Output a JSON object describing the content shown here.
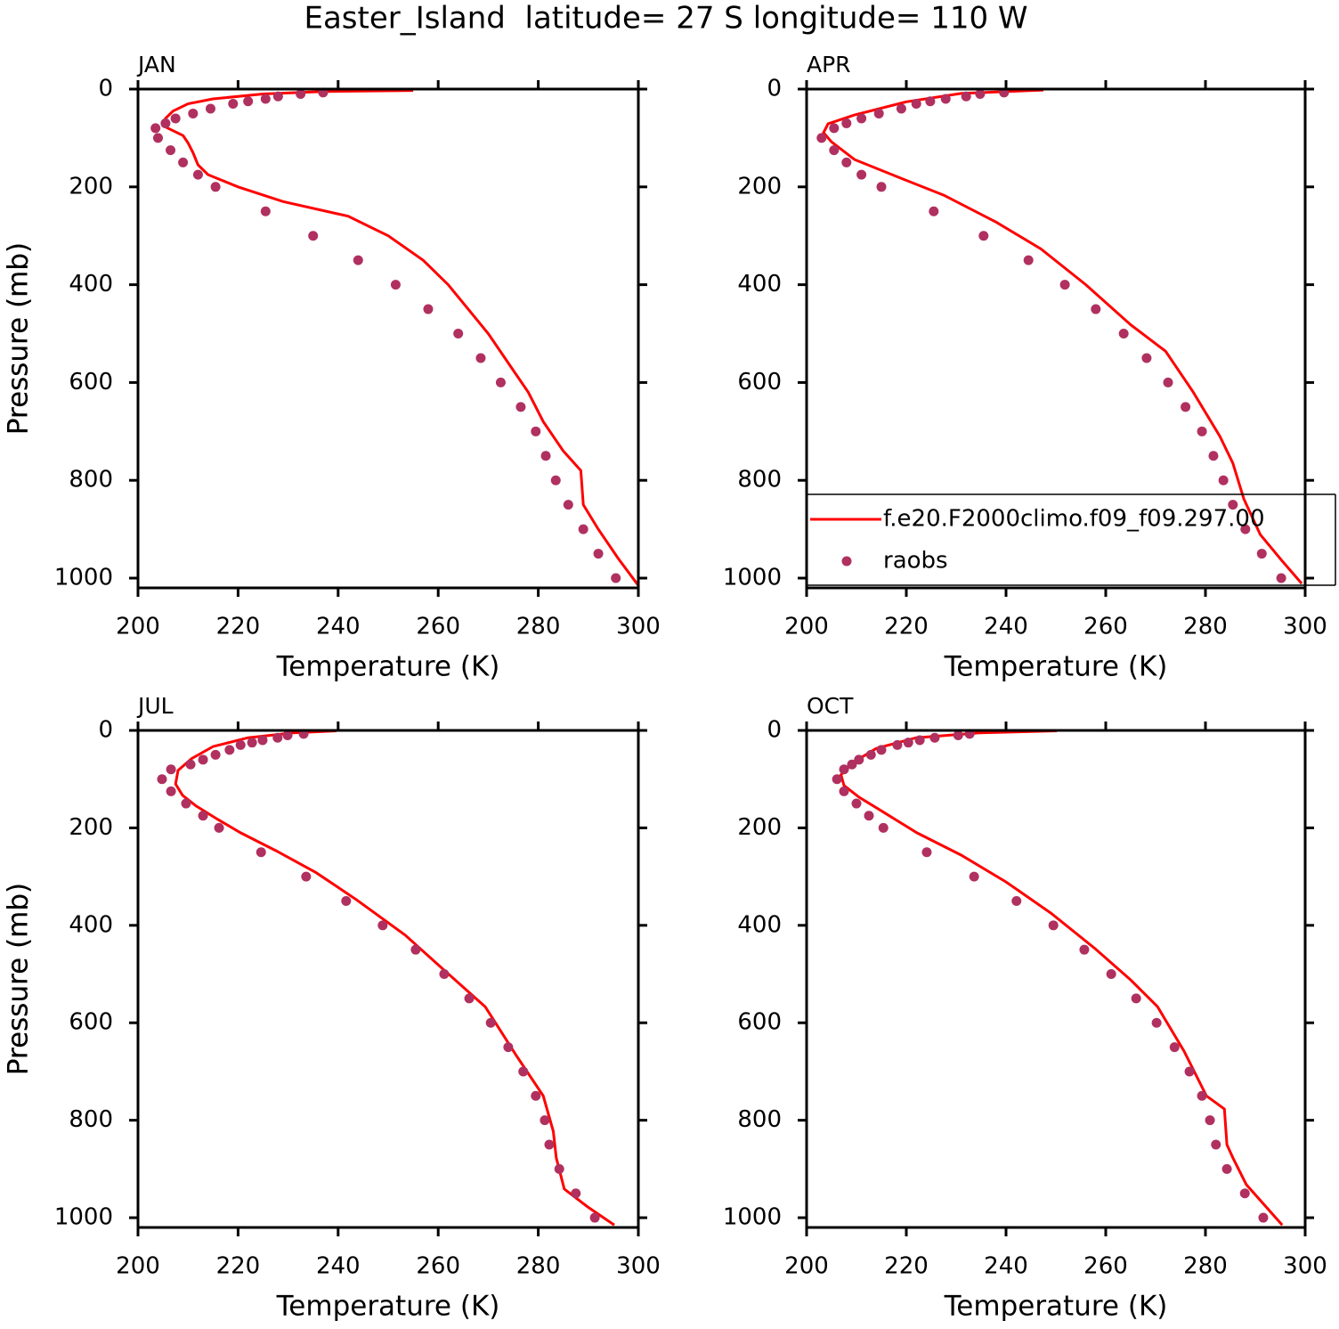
{
  "title": "Easter_Island  latitude= 27 S longitude= 110 W",
  "chart_data": [
    {
      "type": "line",
      "title": "JAN",
      "xlabel": "Temperature (K)",
      "ylabel": "Pressure (mb)",
      "xlim": [
        200,
        300
      ],
      "xticks": [
        200,
        220,
        240,
        260,
        280,
        300
      ],
      "ylim": [
        1020,
        0
      ],
      "yticks": [
        0,
        200,
        400,
        600,
        800,
        1000
      ],
      "series": [
        {
          "name": "f.e20.F2000climo.f09_f09.297.00",
          "color": "#ff0000",
          "type": "line",
          "x": [
            255,
            237,
            225,
            215,
            210,
            207,
            205.5,
            205,
            207,
            209,
            210,
            211,
            212,
            214,
            220,
            229,
            242,
            250,
            257,
            262,
            266,
            270,
            274,
            278,
            281,
            285,
            288.5,
            289,
            292,
            296,
            300
          ],
          "y": [
            3,
            5,
            10,
            20,
            30,
            45,
            60,
            75,
            85,
            95,
            110,
            130,
            155,
            175,
            200,
            230,
            260,
            300,
            350,
            400,
            450,
            500,
            560,
            620,
            680,
            740,
            780,
            850,
            900,
            960,
            1015
          ]
        },
        {
          "name": "raobs",
          "color": "#b03060",
          "type": "scatter",
          "x": [
            237,
            232.5,
            228,
            225.5,
            222,
            219,
            214.5,
            211,
            207.5,
            205.5,
            203.5,
            204,
            206.5,
            209,
            212,
            215.5,
            225.5,
            235,
            244,
            251.5,
            258,
            264,
            268.5,
            272.5,
            276.5,
            279.5,
            281.5,
            283.5,
            286,
            289,
            292,
            295.5
          ],
          "y": [
            7,
            10,
            15,
            20,
            25,
            30,
            40,
            50,
            60,
            70,
            80,
            100,
            125,
            150,
            175,
            200,
            250,
            300,
            350,
            400,
            450,
            500,
            550,
            600,
            650,
            700,
            750,
            800,
            850,
            900,
            950,
            1000
          ]
        }
      ]
    },
    {
      "type": "line",
      "title": "APR",
      "xlabel": "Temperature (K)",
      "ylabel": "Pressure (mb)",
      "xlim": [
        200,
        300
      ],
      "xticks": [
        200,
        220,
        240,
        260,
        280,
        300
      ],
      "ylim": [
        1020,
        0
      ],
      "yticks": [
        0,
        200,
        400,
        600,
        800,
        1000
      ],
      "legend": "lower right",
      "series": [
        {
          "name": "f.e20.F2000climo.f09_f09.297.00",
          "color": "#ff0000",
          "type": "line",
          "x": [
            247.5,
            231,
            220,
            209.6,
            204.3,
            203.4,
            205,
            209.6,
            218.6,
            227.5,
            238,
            247,
            256,
            265,
            272,
            277.5,
            282.9,
            285.5,
            287.7,
            291,
            295.4,
            299.3
          ],
          "y": [
            2,
            9,
            26,
            53,
            71,
            89,
            108,
            144,
            181,
            217,
            272,
            327,
            400,
            482,
            536,
            619,
            710,
            765,
            838,
            911,
            965,
            1011
          ]
        },
        {
          "name": "raobs",
          "color": "#b03060",
          "type": "scatter",
          "x": [
            239.6,
            234.8,
            232,
            227.9,
            224.8,
            222,
            219,
            214.5,
            211,
            208,
            205.5,
            203,
            205.5,
            208,
            211,
            215,
            225.5,
            235.5,
            244.5,
            251.8,
            258,
            263.6,
            268.2,
            272.5,
            276,
            279.3,
            281.6,
            283.6,
            285.5,
            288,
            291.3,
            295.2
          ],
          "y": [
            7,
            10,
            15,
            20,
            25,
            30,
            40,
            50,
            60,
            70,
            80,
            100,
            125,
            150,
            175,
            200,
            250,
            300,
            350,
            400,
            450,
            500,
            550,
            600,
            650,
            700,
            750,
            800,
            850,
            900,
            950,
            1000
          ]
        }
      ]
    },
    {
      "type": "line",
      "title": "JUL",
      "xlabel": "Temperature (K)",
      "ylabel": "Pressure (mb)",
      "xlim": [
        200,
        300
      ],
      "xticks": [
        200,
        220,
        240,
        260,
        280,
        300
      ],
      "ylim": [
        1020,
        0
      ],
      "yticks": [
        0,
        200,
        400,
        600,
        800,
        1000
      ],
      "series": [
        {
          "name": "f.e20.F2000climo.f09_f09.297.00",
          "color": "#ff0000",
          "type": "line",
          "x": [
            239.7,
            231,
            222,
            215,
            210.7,
            208,
            207.5,
            208.9,
            211.6,
            216,
            220.5,
            227.6,
            235.6,
            243.6,
            253.4,
            261.4,
            269.4,
            275.6,
            281,
            283,
            283.6,
            285.2,
            289.9,
            295.2
          ],
          "y": [
            1,
            5,
            15,
            33,
            58,
            82,
            110,
            133,
            155,
            183,
            210,
            247,
            292,
            347,
            420,
            494,
            567,
            667,
            750,
            823,
            877,
            941,
            978,
            1015
          ]
        },
        {
          "name": "raobs",
          "color": "#b03060",
          "type": "scatter",
          "x": [
            233.1,
            229.9,
            227.9,
            224.9,
            222.8,
            220.5,
            218.3,
            215.5,
            213,
            210.5,
            206.6,
            204.8,
            206.6,
            209.6,
            213,
            216.2,
            224.6,
            233.6,
            241.6,
            248.9,
            255.5,
            261.2,
            266.2,
            270.5,
            274,
            277,
            279.5,
            281.3,
            282.2,
            284.2,
            287.5,
            291.3
          ],
          "y": [
            7,
            10,
            15,
            20,
            25,
            30,
            40,
            50,
            60,
            70,
            80,
            100,
            125,
            150,
            175,
            200,
            250,
            300,
            350,
            400,
            450,
            500,
            550,
            600,
            650,
            700,
            750,
            800,
            850,
            900,
            950,
            1000
          ]
        }
      ]
    },
    {
      "type": "line",
      "title": "OCT",
      "xlabel": "Temperature (K)",
      "ylabel": "Pressure (mb)",
      "xlim": [
        200,
        300
      ],
      "xticks": [
        200,
        220,
        240,
        260,
        280,
        300
      ],
      "ylim": [
        1020,
        0
      ],
      "yticks": [
        0,
        200,
        400,
        600,
        800,
        1000
      ],
      "series": [
        {
          "name": "f.e20.F2000climo.f09_f09.297.00",
          "color": "#ff0000",
          "type": "line",
          "x": [
            250.2,
            234.6,
            222,
            214,
            209.6,
            206.9,
            207.5,
            210.5,
            215,
            222.1,
            231,
            240,
            249,
            257.9,
            265,
            270.4,
            275.7,
            280.2,
            283.8,
            284.3,
            285.5,
            288.2,
            295.4
          ],
          "y": [
            1,
            5,
            15,
            37,
            64,
            91,
            113,
            137,
            165,
            210,
            256,
            311,
            375,
            448,
            512,
            567,
            658,
            750,
            777,
            850,
            877,
            932,
            1015
          ]
        },
        {
          "name": "raobs",
          "color": "#b03060",
          "type": "scatter",
          "x": [
            232.7,
            230.4,
            225.7,
            222.7,
            220.4,
            218.2,
            215,
            212.9,
            210.5,
            209.1,
            207.5,
            206.1,
            207.5,
            210,
            212.5,
            215.4,
            224.1,
            233.6,
            242.1,
            249.5,
            255.7,
            261.1,
            266.1,
            270.2,
            273.8,
            276.8,
            279.3,
            280.9,
            282.1,
            284.3,
            287.9,
            291.6
          ],
          "y": [
            7,
            10,
            15,
            20,
            25,
            30,
            40,
            50,
            60,
            70,
            80,
            100,
            125,
            150,
            175,
            200,
            250,
            300,
            350,
            400,
            450,
            500,
            550,
            600,
            650,
            700,
            750,
            800,
            850,
            900,
            950,
            1000
          ]
        }
      ]
    }
  ]
}
